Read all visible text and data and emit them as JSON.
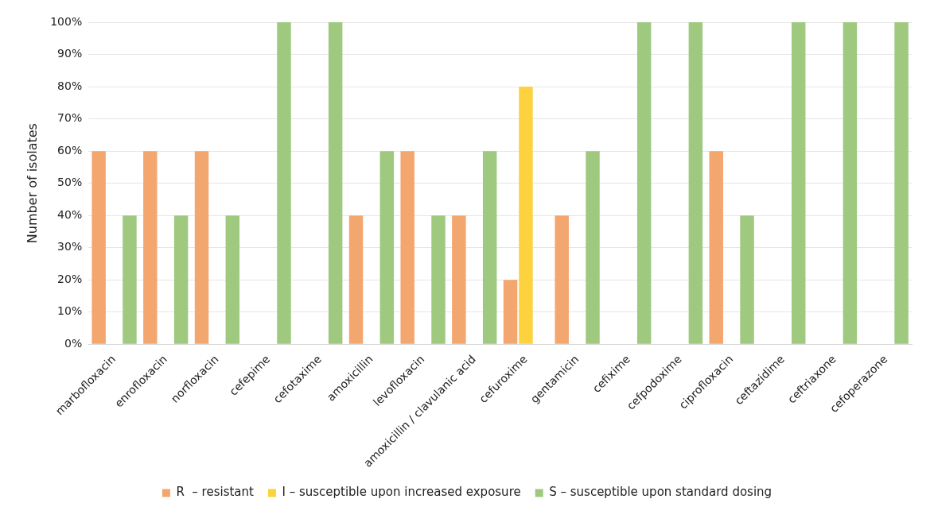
{
  "chart_data": {
    "type": "bar",
    "ylabel": "Number of isolates",
    "categories": [
      "marbofloxacin",
      "enrofloxacin",
      "norfloxacin",
      "cefepime",
      "cefotaxime",
      "amoxicillin",
      "levofloxacin",
      "amoxicillin / clavulanic acid",
      "cefuroxime",
      "gentamicin",
      "cefixime",
      "cefpodoxime",
      "ciprofloxacin",
      "ceftazidime",
      "ceftriaxone",
      "cefoperazone"
    ],
    "series": [
      {
        "name": "R  – resistant",
        "color": "#f4a66f",
        "values": [
          60,
          60,
          60,
          null,
          null,
          40,
          60,
          40,
          20,
          40,
          null,
          null,
          60,
          null,
          null,
          null
        ]
      },
      {
        "name": "I – susceptible upon increased exposure",
        "color": "#fdd23e",
        "values": [
          null,
          null,
          null,
          null,
          null,
          null,
          null,
          null,
          80,
          null,
          null,
          null,
          null,
          null,
          null,
          null
        ]
      },
      {
        "name": "S – susceptible upon standard dosing",
        "color": "#9ec97f",
        "values": [
          40,
          40,
          40,
          100,
          100,
          60,
          40,
          60,
          null,
          60,
          100,
          100,
          40,
          100,
          100,
          100
        ]
      }
    ],
    "ylim": [
      0,
      100
    ],
    "yticks": [
      {
        "value": 0,
        "label": "0%"
      },
      {
        "value": 10,
        "label": "10%"
      },
      {
        "value": 20,
        "label": "20%"
      },
      {
        "value": 30,
        "label": "30%"
      },
      {
        "value": 40,
        "label": "40%"
      },
      {
        "value": 50,
        "label": "50%"
      },
      {
        "value": 60,
        "label": "60%"
      },
      {
        "value": 70,
        "label": "70%"
      },
      {
        "value": 80,
        "label": "80%"
      },
      {
        "value": 90,
        "label": "90%"
      },
      {
        "value": 100,
        "label": "100%"
      }
    ],
    "grid": "y",
    "legend": "bottom"
  }
}
